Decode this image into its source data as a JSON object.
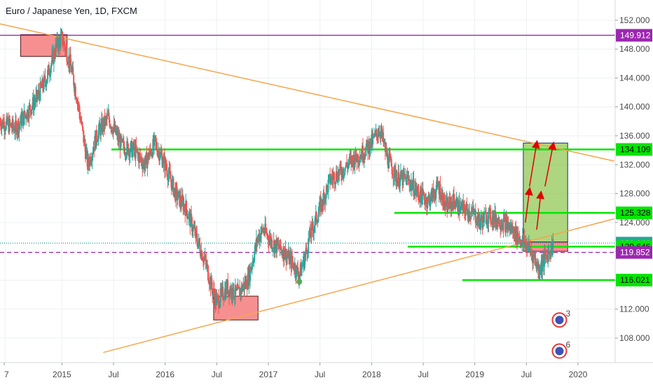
{
  "chart_data": {
    "type": "candlestick",
    "title": "Euro / Japanese Yen, 1D, FXCM",
    "x_tick_labels": [
      "7",
      "2015",
      "Jul",
      "2016",
      "Jul",
      "2017",
      "Jul",
      "2018",
      "Jul",
      "2019",
      "Jul",
      "2020"
    ],
    "y_ticks": [
      152,
      148,
      144,
      140,
      136,
      132,
      128,
      124,
      120,
      116,
      112,
      108
    ],
    "ylim": [
      104.6,
      154.8
    ],
    "price_path": [
      [
        2014.4,
        138
      ],
      [
        2014.55,
        137
      ],
      [
        2014.75,
        141
      ],
      [
        2014.85,
        144
      ],
      [
        2014.95,
        148.5
      ],
      [
        2015.0,
        149.5
      ],
      [
        2015.08,
        146
      ],
      [
        2015.15,
        141
      ],
      [
        2015.25,
        132
      ],
      [
        2015.35,
        136.5
      ],
      [
        2015.45,
        138.5
      ],
      [
        2015.58,
        134.5
      ],
      [
        2015.7,
        134
      ],
      [
        2015.8,
        132
      ],
      [
        2015.9,
        135
      ],
      [
        2016.0,
        132
      ],
      [
        2016.1,
        128
      ],
      [
        2016.2,
        126
      ],
      [
        2016.3,
        122
      ],
      [
        2016.4,
        118
      ],
      [
        2016.45,
        115
      ],
      [
        2016.5,
        113
      ],
      [
        2016.6,
        115
      ],
      [
        2016.7,
        114
      ],
      [
        2016.8,
        116
      ],
      [
        2016.9,
        122
      ],
      [
        2016.95,
        123
      ],
      [
        2017.05,
        121
      ],
      [
        2017.15,
        120
      ],
      [
        2017.25,
        118
      ],
      [
        2017.3,
        116.7
      ],
      [
        2017.35,
        119
      ],
      [
        2017.4,
        122
      ],
      [
        2017.45,
        124
      ],
      [
        2017.5,
        126
      ],
      [
        2017.6,
        130
      ],
      [
        2017.7,
        131
      ],
      [
        2017.8,
        132.5
      ],
      [
        2017.9,
        133.5
      ],
      [
        2018.0,
        135
      ],
      [
        2018.08,
        137
      ],
      [
        2018.15,
        133
      ],
      [
        2018.25,
        130
      ],
      [
        2018.35,
        130
      ],
      [
        2018.45,
        128
      ],
      [
        2018.55,
        127
      ],
      [
        2018.65,
        129
      ],
      [
        2018.72,
        126
      ],
      [
        2018.8,
        127
      ],
      [
        2018.85,
        126
      ],
      [
        2018.95,
        125.5
      ],
      [
        2019.0,
        125
      ],
      [
        2019.05,
        124
      ],
      [
        2019.12,
        125
      ],
      [
        2019.2,
        124.5
      ],
      [
        2019.28,
        124
      ],
      [
        2019.36,
        123
      ],
      [
        2019.42,
        122
      ],
      [
        2019.46,
        121.5
      ],
      [
        2019.52,
        120.5
      ],
      [
        2019.58,
        119
      ],
      [
        2019.62,
        117.5
      ],
      [
        2019.66,
        118.5
      ],
      [
        2019.72,
        120
      ],
      [
        2019.76,
        121
      ]
    ],
    "horizontal_levels": [
      {
        "price": 149.912,
        "label": "149.912",
        "color": "#9c27b0",
        "style": "solid"
      },
      {
        "price": 134.109,
        "label": "134.109",
        "color": "#00e600",
        "style": "solid"
      },
      {
        "price": 125.328,
        "label": "125.328",
        "color": "#00e600",
        "style": "solid"
      },
      {
        "price": 121.141,
        "label": "121.141",
        "color": "#26a69a",
        "style": "dotted"
      },
      {
        "price": 120.646,
        "label": "120.646",
        "color": "#00e600",
        "style": "solid"
      },
      {
        "price": 119.852,
        "label": "119.852",
        "color": "#9c27b0",
        "style": "dashed"
      },
      {
        "price": 116.021,
        "label": "116.021",
        "color": "#00e600",
        "style": "solid"
      }
    ],
    "trendlines": [
      {
        "from": [
          2014.4,
          151.5
        ],
        "to": [
          2020.35,
          132.5
        ],
        "color": "#f5a54a"
      },
      {
        "from": [
          2015.4,
          106
        ],
        "to": [
          2020.35,
          124.5
        ],
        "color": "#f5a54a"
      }
    ],
    "zones": [
      {
        "x": [
          2014.6,
          2015.05
        ],
        "y": [
          147,
          150
        ],
        "color": "#f47c7c"
      },
      {
        "x": [
          2016.47,
          2016.9
        ],
        "y": [
          110.5,
          113.8
        ],
        "color": "#f47c7c"
      },
      {
        "x": [
          2019.47,
          2019.9
        ],
        "y": [
          120,
          121.3
        ],
        "color": "#f47c7c"
      },
      {
        "x": [
          2019.47,
          2019.9
        ],
        "y": [
          121.3,
          135
        ],
        "color": "#8bc34a"
      }
    ]
  },
  "axis_tags": [
    {
      "text": "149.912",
      "bg": "#9c27b0",
      "fg": "#ffffff"
    },
    {
      "text": "134.109",
      "bg": "#00e600",
      "fg": "#000000"
    },
    {
      "text": "125.328",
      "bg": "#00e600",
      "fg": "#000000"
    },
    {
      "text": "121.141",
      "bg": "#26a69a",
      "fg": "#ffffff"
    },
    {
      "text": "120.646",
      "bg": "#00e600",
      "fg": "#000000"
    },
    {
      "text": "119.852",
      "bg": "#9c27b0",
      "fg": "#ffffff"
    },
    {
      "text": "116.021",
      "bg": "#00e600",
      "fg": "#000000"
    }
  ],
  "badges": [
    {
      "text": "3"
    },
    {
      "text": "6"
    }
  ]
}
